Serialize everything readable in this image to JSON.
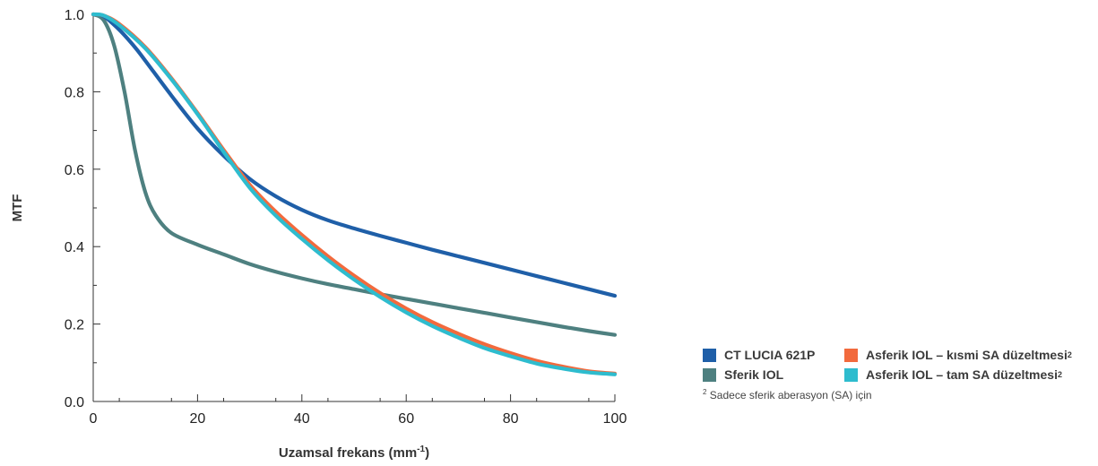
{
  "chart_data": {
    "type": "line",
    "title": "",
    "ylabel": "MTF",
    "xlabel": "Uzamsal frekans (mm",
    "xlabel_sup": "-1",
    "xlabel_suffix": ")",
    "xlim": [
      0,
      100
    ],
    "ylim": [
      0,
      1.0
    ],
    "x_ticks": [
      0,
      20,
      40,
      60,
      80,
      100
    ],
    "x_tick_labels": [
      "0",
      "20",
      "40",
      "60",
      "80",
      "100"
    ],
    "y_ticks": [
      0,
      0.2,
      0.4,
      0.6,
      0.8,
      1.0
    ],
    "y_tick_labels": [
      "0.0",
      "0.2",
      "0.4",
      "0.6",
      "0.8",
      "1.0"
    ],
    "grid": false,
    "legend_position": "bottom-right",
    "series": [
      {
        "name": "CT LUCIA 621P",
        "color": "#1f5fa8",
        "points": [
          [
            0,
            1.0
          ],
          [
            2,
            0.995
          ],
          [
            5,
            0.96
          ],
          [
            8,
            0.915
          ],
          [
            10,
            0.88
          ],
          [
            15,
            0.79
          ],
          [
            20,
            0.705
          ],
          [
            25,
            0.635
          ],
          [
            30,
            0.575
          ],
          [
            35,
            0.53
          ],
          [
            40,
            0.495
          ],
          [
            45,
            0.468
          ],
          [
            50,
            0.447
          ],
          [
            55,
            0.428
          ],
          [
            60,
            0.41
          ],
          [
            65,
            0.392
          ],
          [
            70,
            0.375
          ],
          [
            75,
            0.358
          ],
          [
            80,
            0.341
          ],
          [
            85,
            0.324
          ],
          [
            90,
            0.307
          ],
          [
            95,
            0.29
          ],
          [
            100,
            0.273
          ]
        ]
      },
      {
        "name": "Sferik IOL",
        "color": "#4e8080",
        "points": [
          [
            0,
            1.0
          ],
          [
            2,
            0.985
          ],
          [
            4,
            0.92
          ],
          [
            6,
            0.8
          ],
          [
            8,
            0.65
          ],
          [
            10,
            0.54
          ],
          [
            12,
            0.48
          ],
          [
            15,
            0.435
          ],
          [
            20,
            0.405
          ],
          [
            25,
            0.38
          ],
          [
            30,
            0.355
          ],
          [
            35,
            0.335
          ],
          [
            40,
            0.318
          ],
          [
            45,
            0.303
          ],
          [
            50,
            0.29
          ],
          [
            55,
            0.277
          ],
          [
            60,
            0.265
          ],
          [
            65,
            0.253
          ],
          [
            70,
            0.241
          ],
          [
            75,
            0.229
          ],
          [
            80,
            0.217
          ],
          [
            85,
            0.205
          ],
          [
            90,
            0.193
          ],
          [
            95,
            0.182
          ],
          [
            100,
            0.172
          ]
        ]
      },
      {
        "name": "Asferik IOL – kısmi SA düzeltmesi",
        "name_sup": "2",
        "color": "#f26a3d",
        "points": [
          [
            0,
            1.0
          ],
          [
            2,
            0.997
          ],
          [
            5,
            0.975
          ],
          [
            10,
            0.915
          ],
          [
            15,
            0.835
          ],
          [
            20,
            0.745
          ],
          [
            25,
            0.65
          ],
          [
            30,
            0.56
          ],
          [
            35,
            0.49
          ],
          [
            40,
            0.43
          ],
          [
            45,
            0.375
          ],
          [
            50,
            0.325
          ],
          [
            55,
            0.28
          ],
          [
            60,
            0.24
          ],
          [
            65,
            0.205
          ],
          [
            70,
            0.175
          ],
          [
            75,
            0.148
          ],
          [
            80,
            0.125
          ],
          [
            85,
            0.105
          ],
          [
            90,
            0.09
          ],
          [
            95,
            0.078
          ],
          [
            100,
            0.072
          ]
        ]
      },
      {
        "name": "Asferik IOL – tam SA düzeltmesi",
        "name_sup": "2",
        "color": "#2ebcce",
        "points": [
          [
            0,
            1.0
          ],
          [
            2,
            0.997
          ],
          [
            5,
            0.972
          ],
          [
            10,
            0.912
          ],
          [
            15,
            0.832
          ],
          [
            20,
            0.742
          ],
          [
            25,
            0.645
          ],
          [
            30,
            0.552
          ],
          [
            35,
            0.48
          ],
          [
            40,
            0.42
          ],
          [
            45,
            0.365
          ],
          [
            50,
            0.315
          ],
          [
            55,
            0.27
          ],
          [
            60,
            0.23
          ],
          [
            65,
            0.195
          ],
          [
            70,
            0.165
          ],
          [
            75,
            0.138
          ],
          [
            80,
            0.117
          ],
          [
            85,
            0.098
          ],
          [
            90,
            0.085
          ],
          [
            95,
            0.075
          ],
          [
            100,
            0.07
          ]
        ]
      }
    ]
  },
  "footnote": {
    "marker": "2",
    "text": "Sadece sferik aberasyon (SA) için"
  }
}
